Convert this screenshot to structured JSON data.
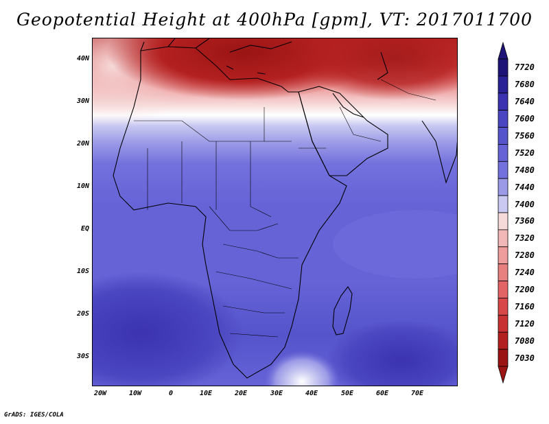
{
  "title": "Geopotential Height at 400hPa [gpm], VT: 2017011700",
  "footer": "GrADS: IGES/COLA",
  "y_ticks": [
    "40N",
    "30N",
    "20N",
    "10N",
    "EQ",
    "10S",
    "20S",
    "30S"
  ],
  "x_ticks": [
    "20W",
    "10W",
    "0",
    "10E",
    "20E",
    "30E",
    "40E",
    "50E",
    "60E",
    "70E"
  ],
  "colorbar": {
    "labels": [
      "7720",
      "7680",
      "7640",
      "7600",
      "7560",
      "7520",
      "7480",
      "7440",
      "7400",
      "7360",
      "7320",
      "7280",
      "7240",
      "7200",
      "7160",
      "7120",
      "7080",
      "7030"
    ],
    "colors": [
      "#1e1478",
      "#2a2196",
      "#3b33b0",
      "#4a45c0",
      "#5654cb",
      "#6563d6",
      "#7371dd",
      "#9b9ae6",
      "#c9c9f2",
      "#f6dada",
      "#f2b8b8",
      "#ee9c9c",
      "#e88080",
      "#e26464",
      "#d94848",
      "#c83232",
      "#b32020",
      "#9a1414"
    ]
  },
  "map": {
    "region": "Africa and Middle East",
    "lon_range": [
      -25,
      80
    ],
    "lat_range": [
      -37,
      45
    ]
  }
}
